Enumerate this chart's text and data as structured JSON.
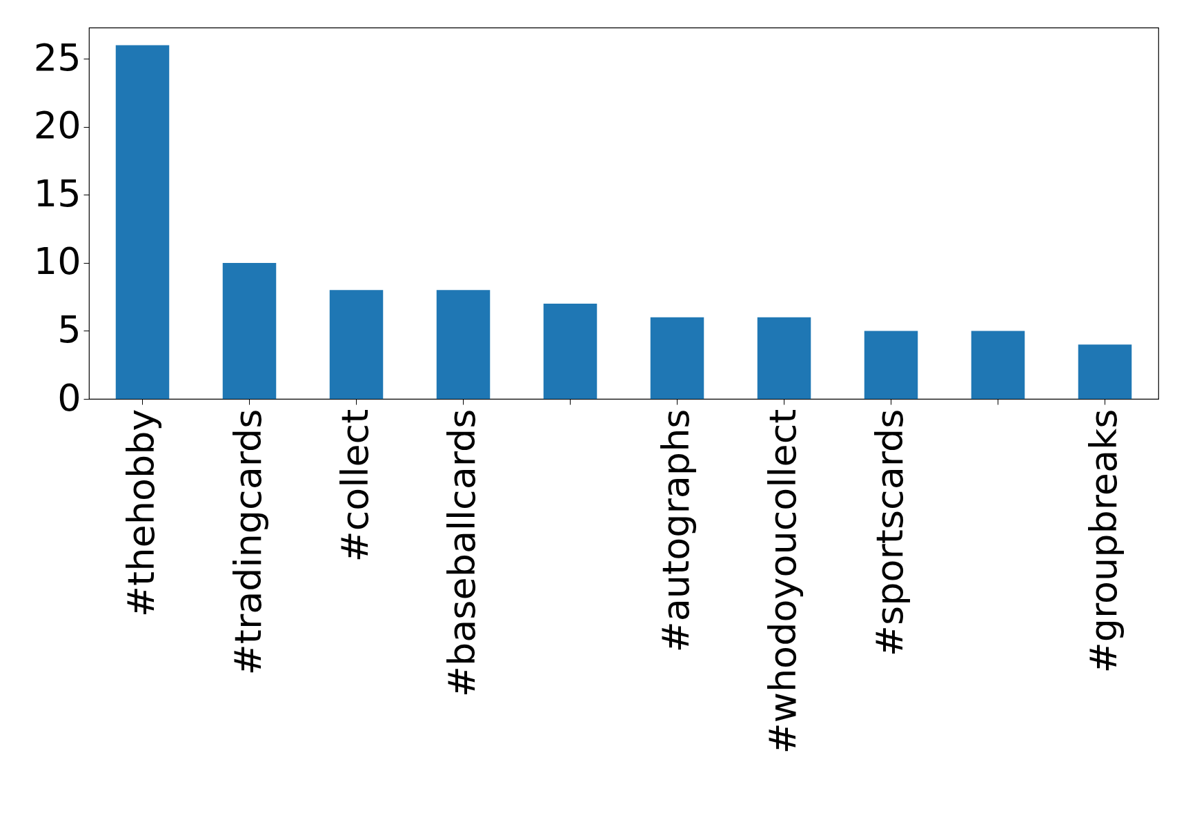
{
  "chart_data": {
    "type": "bar",
    "categories": [
      "#thehobby",
      "#tradingcards",
      "#collect",
      "#baseballcards",
      null,
      "#autographs",
      "#whodoyoucollect",
      "#sportscards",
      null,
      "#groupbreaks"
    ],
    "values": [
      26,
      10,
      8,
      8,
      7,
      6,
      6,
      5,
      5,
      4
    ],
    "color": "#1f77b4",
    "ylim": [
      0,
      27.3
    ],
    "yticks": [
      0,
      5,
      10,
      15,
      20,
      25
    ],
    "grid": false
  }
}
